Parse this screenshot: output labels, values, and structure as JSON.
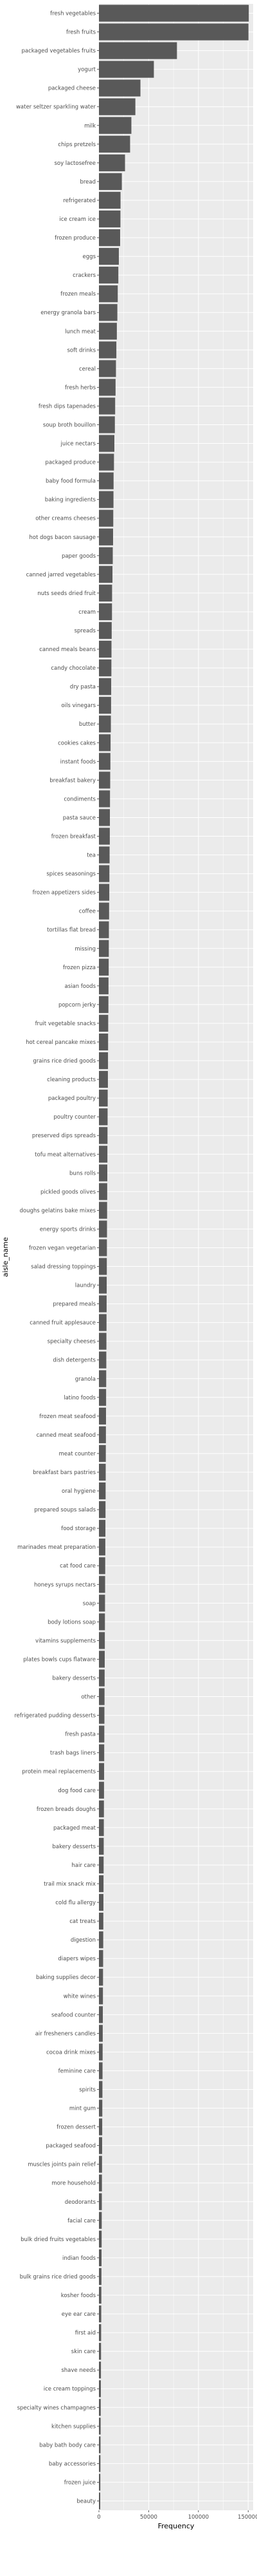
{
  "chart_data": {
    "type": "bar",
    "orientation": "horizontal",
    "xlabel": "Frequency",
    "ylabel": "aisle_name",
    "xlim": [
      0,
      155000
    ],
    "x_ticks": [
      0,
      50000,
      100000,
      150000
    ],
    "x_tick_labels": [
      "0",
      "50000",
      "100000",
      "150000"
    ],
    "grid": true,
    "background": "#EBEBEB",
    "bar_color": "#595959",
    "grid_color": "#FFFFFF",
    "categories": [
      "fresh vegetables",
      "fresh fruits",
      "packaged vegetables fruits",
      "yogurt",
      "packaged cheese",
      "water seltzer sparkling water",
      "milk",
      "chips pretzels",
      "soy lactosefree",
      "bread",
      "refrigerated",
      "ice cream ice",
      "frozen produce",
      "eggs",
      "crackers",
      "frozen meals",
      "energy granola bars",
      "lunch meat",
      "soft drinks",
      "cereal",
      "fresh herbs",
      "fresh dips tapenades",
      "soup broth bouillon",
      "juice nectars",
      "packaged produce",
      "baby food formula",
      "baking ingredients",
      "other creams cheeses",
      "hot dogs bacon sausage",
      "paper goods",
      "canned jarred vegetables",
      "nuts seeds dried fruit",
      "cream",
      "spreads",
      "canned meals beans",
      "candy chocolate",
      "dry pasta",
      "oils vinegars",
      "butter",
      "cookies cakes",
      "instant foods",
      "breakfast bakery",
      "condiments",
      "pasta sauce",
      "frozen breakfast",
      "tea",
      "spices seasonings",
      "frozen appetizers sides",
      "coffee",
      "tortillas flat bread",
      "missing",
      "frozen pizza",
      "asian foods",
      "popcorn jerky",
      "fruit vegetable snacks",
      "hot cereal pancake mixes",
      "grains rice dried goods",
      "cleaning products",
      "packaged poultry",
      "poultry counter",
      "preserved dips spreads",
      "tofu meat alternatives",
      "buns rolls",
      "pickled goods olives",
      "doughs gelatins bake mixes",
      "energy sports drinks",
      "frozen vegan vegetarian",
      "salad dressing toppings",
      "laundry",
      "prepared meals",
      "canned fruit applesauce",
      "specialty cheeses",
      "dish detergents",
      "granola",
      "latino foods",
      "frozen meat seafood",
      "canned meat seafood",
      "meat counter",
      "breakfast bars pastries",
      "oral hygiene",
      "prepared soups salads",
      "food storage",
      "marinades meat preparation",
      "cat food care",
      "honeys syrups nectars",
      "soap",
      "body lotions soap",
      "vitamins supplements",
      "plates bowls cups flatware",
      "bakery desserts",
      "other",
      "refrigerated pudding desserts",
      "fresh pasta",
      "trash bags liners",
      "protein meal replacements",
      "dog food care",
      "frozen breads doughs",
      "packaged meat",
      "bakery desserts",
      "hair care",
      "trail mix snack mix",
      "cold flu allergy",
      "cat treats",
      "digestion",
      "diapers wipes",
      "baking supplies decor",
      "white wines",
      "seafood counter",
      "air fresheners candles",
      "cocoa drink mixes",
      "feminine care",
      "spirits",
      "mint gum",
      "frozen dessert",
      "packaged seafood",
      "muscles joints pain relief",
      "more household",
      "deodorants",
      "facial care",
      "bulk dried fruits vegetables",
      "indian foods",
      "bulk grains rice dried goods",
      "kosher foods",
      "eye ear care",
      "first aid",
      "skin care",
      "shave needs",
      "ice cream toppings",
      "specialty wines champagnes",
      "kitchen supplies",
      "baby bath body care",
      "baby accessories",
      "frozen juice",
      "beauty"
    ],
    "values": [
      150600,
      150300,
      78400,
      55200,
      41700,
      36600,
      32600,
      31300,
      26200,
      23000,
      21700,
      21600,
      21300,
      20000,
      19500,
      18900,
      18500,
      18000,
      17500,
      17100,
      16700,
      16300,
      16000,
      15500,
      15100,
      14700,
      14600,
      14400,
      14200,
      13900,
      13600,
      13200,
      13100,
      12800,
      12600,
      12500,
      12300,
      12200,
      12000,
      11700,
      11500,
      11300,
      11100,
      11000,
      10900,
      10700,
      10500,
      10400,
      10200,
      10000,
      9900,
      9800,
      9600,
      9500,
      9300,
      9200,
      9100,
      9000,
      8800,
      8700,
      8600,
      8500,
      8400,
      8300,
      8200,
      8100,
      8000,
      7900,
      7800,
      7700,
      7600,
      7500,
      7400,
      7300,
      7200,
      7100,
      7000,
      6900,
      6800,
      6700,
      6600,
      6500,
      6400,
      6300,
      6200,
      6100,
      6000,
      5900,
      5800,
      5700,
      5600,
      5500,
      5400,
      5300,
      5200,
      5100,
      5000,
      4900,
      4800,
      4700,
      4600,
      4500,
      4400,
      4300,
      4200,
      4100,
      4000,
      3900,
      3800,
      3700,
      3600,
      3500,
      3400,
      3300,
      3200,
      3100,
      3000,
      2900,
      2800,
      2700,
      2600,
      2500,
      2400,
      2300,
      2200,
      2100,
      2000,
      1900,
      1800,
      1700,
      1600,
      1500,
      1400,
      1300
    ]
  }
}
